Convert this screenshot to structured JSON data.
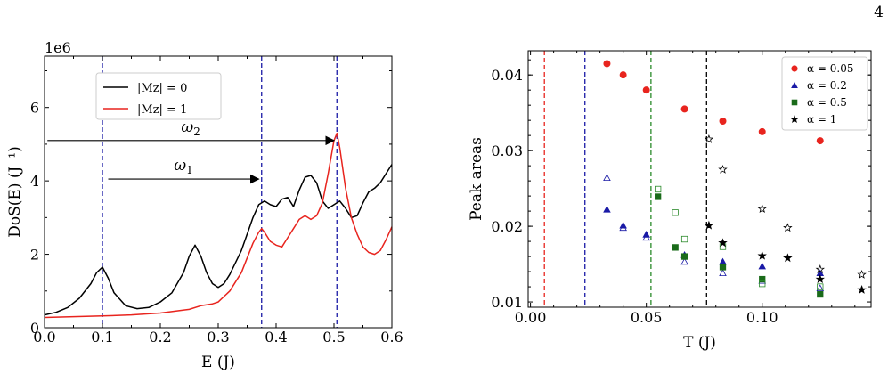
{
  "page_number": "4",
  "chart_data": [
    {
      "type": "line",
      "xlabel": "E (J)",
      "ylabel": "DoS(E) (J⁻¹)",
      "y_offset_text": "1e6",
      "xlim": [
        0.0,
        0.6
      ],
      "ylim": [
        0,
        7.4
      ],
      "xticks": [
        "0.0",
        "0.1",
        "0.2",
        "0.3",
        "0.4",
        "0.5",
        "0.6"
      ],
      "yticks": [
        "0",
        "2",
        "4",
        "6"
      ],
      "legend": [
        "|Mz| = 0",
        "|Mz| = 1"
      ],
      "legend_position": "top-center",
      "series": [
        {
          "name": "|Mz| = 0",
          "color": "#000000",
          "x": [
            0.0,
            0.02,
            0.04,
            0.06,
            0.08,
            0.09,
            0.1,
            0.11,
            0.12,
            0.14,
            0.16,
            0.18,
            0.2,
            0.22,
            0.24,
            0.25,
            0.26,
            0.27,
            0.28,
            0.29,
            0.3,
            0.31,
            0.32,
            0.34,
            0.36,
            0.37,
            0.38,
            0.39,
            0.4,
            0.41,
            0.42,
            0.43,
            0.44,
            0.45,
            0.46,
            0.47,
            0.48,
            0.49,
            0.5,
            0.51,
            0.52,
            0.53,
            0.54,
            0.55,
            0.56,
            0.57,
            0.58,
            0.59,
            0.6
          ],
          "y": [
            0.35,
            0.42,
            0.55,
            0.8,
            1.2,
            1.5,
            1.65,
            1.35,
            0.95,
            0.6,
            0.52,
            0.55,
            0.7,
            0.95,
            1.5,
            1.95,
            2.25,
            1.95,
            1.5,
            1.2,
            1.1,
            1.2,
            1.45,
            2.1,
            3.0,
            3.35,
            3.45,
            3.35,
            3.3,
            3.5,
            3.55,
            3.3,
            3.75,
            4.1,
            4.15,
            3.95,
            3.45,
            3.25,
            3.35,
            3.45,
            3.25,
            3.0,
            3.05,
            3.4,
            3.7,
            3.8,
            3.95,
            4.2,
            4.45
          ]
        },
        {
          "name": "|Mz| = 1",
          "color": "#e8241e",
          "x": [
            0.0,
            0.05,
            0.1,
            0.15,
            0.2,
            0.25,
            0.27,
            0.29,
            0.3,
            0.32,
            0.34,
            0.36,
            0.37,
            0.375,
            0.38,
            0.39,
            0.4,
            0.41,
            0.42,
            0.43,
            0.44,
            0.45,
            0.46,
            0.47,
            0.48,
            0.49,
            0.5,
            0.505,
            0.51,
            0.52,
            0.53,
            0.54,
            0.55,
            0.56,
            0.57,
            0.58,
            0.59,
            0.6
          ],
          "y": [
            0.28,
            0.3,
            0.32,
            0.35,
            0.4,
            0.5,
            0.6,
            0.65,
            0.7,
            1.0,
            1.5,
            2.3,
            2.6,
            2.7,
            2.6,
            2.35,
            2.25,
            2.2,
            2.45,
            2.7,
            2.95,
            3.05,
            2.95,
            3.05,
            3.4,
            4.2,
            5.1,
            5.3,
            4.9,
            3.8,
            3.0,
            2.55,
            2.2,
            2.05,
            2.0,
            2.1,
            2.4,
            2.75
          ]
        }
      ],
      "vlines": [
        {
          "x": 0.1,
          "color": "#1a1aa6"
        },
        {
          "x": 0.375,
          "color": "#1a1aa6"
        },
        {
          "x": 0.505,
          "color": "#1a1aa6"
        }
      ],
      "annotations": [
        {
          "label": "ω",
          "sub": "2",
          "arrow_from": [
            0.005,
            5.1
          ],
          "arrow_to": [
            0.5,
            5.1
          ]
        },
        {
          "label": "ω",
          "sub": "1",
          "arrow_from": [
            0.11,
            4.05
          ],
          "arrow_to": [
            0.37,
            4.05
          ]
        }
      ]
    },
    {
      "type": "scatter",
      "xlabel": "T (J)",
      "ylabel": "Peak areas",
      "xlim": [
        -0.001,
        0.147
      ],
      "ylim": [
        0.0093,
        0.0432
      ],
      "xticks": [
        "0.00",
        "0.05",
        "0.10"
      ],
      "yticks": [
        "0.01",
        "0.02",
        "0.03",
        "0.04"
      ],
      "legend_position": "top-right",
      "vlines": [
        {
          "x": 0.006,
          "color": "#e8241e"
        },
        {
          "x": 0.0235,
          "color": "#1a1aa6"
        },
        {
          "x": 0.052,
          "color": "#2a8a2a"
        },
        {
          "x": 0.076,
          "color": "#000000"
        }
      ],
      "series": [
        {
          "name": "α = 0.05",
          "color": "#e8241e",
          "marker": "circle",
          "filled": true,
          "x": [
            0.033,
            0.04,
            0.05,
            0.0665,
            0.083,
            0.1,
            0.125
          ],
          "y": [
            0.0415,
            0.04,
            0.038,
            0.0355,
            0.0339,
            0.0325,
            0.0313
          ]
        },
        {
          "name": "α = 0.2",
          "color": "#1a1aa6",
          "marker": "triangle",
          "filled": true,
          "x": [
            0.033,
            0.04,
            0.05,
            0.0665,
            0.083,
            0.1,
            0.125
          ],
          "y": [
            0.0222,
            0.0201,
            0.0189,
            0.0162,
            0.0153,
            0.0147,
            0.0138
          ]
        },
        {
          "name": "α = 0.2 (open)",
          "color": "#1a1aa6",
          "marker": "triangle",
          "filled": false,
          "x": [
            0.033,
            0.04,
            0.05,
            0.0665,
            0.083,
            0.1,
            0.125
          ],
          "y": [
            0.0264,
            0.0198,
            0.0185,
            0.0153,
            0.0138,
            0.0128,
            0.0118
          ]
        },
        {
          "name": "α = 0.5",
          "color": "#1a6b1a",
          "marker": "square",
          "filled": true,
          "x": [
            0.055,
            0.0625,
            0.0665,
            0.083,
            0.1,
            0.125
          ],
          "y": [
            0.0239,
            0.0172,
            0.016,
            0.0146,
            0.013,
            0.011
          ]
        },
        {
          "name": "α = 0.5 (open)",
          "color": "#2a8a2a",
          "marker": "square",
          "filled": false,
          "x": [
            0.055,
            0.0625,
            0.0665,
            0.083,
            0.1,
            0.125
          ],
          "y": [
            0.0249,
            0.0218,
            0.0183,
            0.0173,
            0.0124,
            0.012
          ]
        },
        {
          "name": "α = 1",
          "color": "#000000",
          "marker": "star",
          "filled": true,
          "x": [
            0.077,
            0.083,
            0.1,
            0.111,
            0.125,
            0.143
          ],
          "y": [
            0.0201,
            0.0178,
            0.0161,
            0.0158,
            0.013,
            0.0116
          ]
        },
        {
          "name": "α = 1 (open)",
          "color": "#000000",
          "marker": "star",
          "filled": false,
          "x": [
            0.077,
            0.083,
            0.1,
            0.111,
            0.125,
            0.143
          ],
          "y": [
            0.0315,
            0.0275,
            0.0223,
            0.0198,
            0.0143,
            0.0136
          ]
        }
      ],
      "legend": [
        "α = 0.05",
        "α = 0.2",
        "α = 0.5",
        "α = 1"
      ]
    }
  ]
}
